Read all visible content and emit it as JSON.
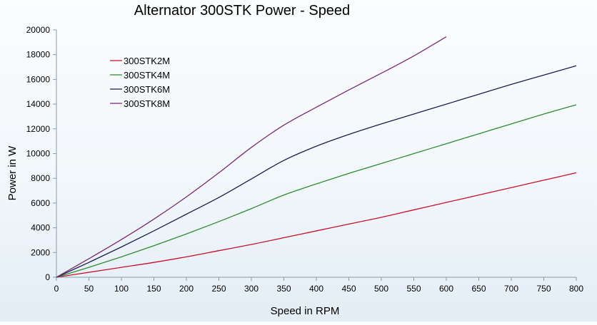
{
  "chart_data": {
    "type": "line",
    "title": "Alternator 300STK Power - Speed",
    "xlabel": "Speed in RPM",
    "ylabel": "Power in W",
    "xlim": [
      0,
      800
    ],
    "ylim": [
      0,
      20000
    ],
    "xticks": [
      0,
      50,
      100,
      150,
      200,
      250,
      300,
      350,
      400,
      450,
      500,
      550,
      600,
      650,
      700,
      750,
      800
    ],
    "yticks": [
      0,
      2000,
      4000,
      6000,
      8000,
      10000,
      12000,
      14000,
      16000,
      18000,
      20000
    ],
    "grid": false,
    "legend_position": "top-left",
    "series": [
      {
        "name": "300STK2M",
        "color": "#c8102e",
        "x": [
          0,
          50,
          100,
          150,
          200,
          250,
          300,
          350,
          400,
          450,
          500,
          550,
          600,
          650,
          700,
          750,
          800
        ],
        "y": [
          0,
          400,
          800,
          1200,
          1650,
          2150,
          2650,
          3200,
          3750,
          4300,
          4850,
          5450,
          6050,
          6650,
          7250,
          7850,
          8450
        ]
      },
      {
        "name": "300STK4M",
        "color": "#2e8b2e",
        "x": [
          0,
          50,
          100,
          150,
          200,
          250,
          300,
          350,
          400,
          450,
          500,
          550,
          600,
          650,
          700,
          750,
          800
        ],
        "y": [
          0,
          800,
          1650,
          2550,
          3500,
          4500,
          5550,
          6650,
          7550,
          8400,
          9200,
          10000,
          10800,
          11600,
          12400,
          13200,
          13950
        ]
      },
      {
        "name": "300STK6M",
        "color": "#1a1f4e",
        "x": [
          0,
          50,
          100,
          150,
          200,
          250,
          300,
          350,
          400,
          450,
          500,
          550,
          600,
          650,
          700,
          750,
          800
        ],
        "y": [
          0,
          1200,
          2450,
          3750,
          5100,
          6450,
          7950,
          9450,
          10600,
          11550,
          12400,
          13200,
          14000,
          14800,
          15600,
          16350,
          17100
        ]
      },
      {
        "name": "300STK8M",
        "color": "#7a2a6e",
        "x": [
          0,
          50,
          100,
          150,
          200,
          250,
          300,
          350,
          400,
          450,
          500,
          550,
          600
        ],
        "y": [
          0,
          1500,
          3050,
          4700,
          6500,
          8450,
          10500,
          12300,
          13750,
          15150,
          16500,
          17900,
          19450
        ]
      }
    ]
  }
}
